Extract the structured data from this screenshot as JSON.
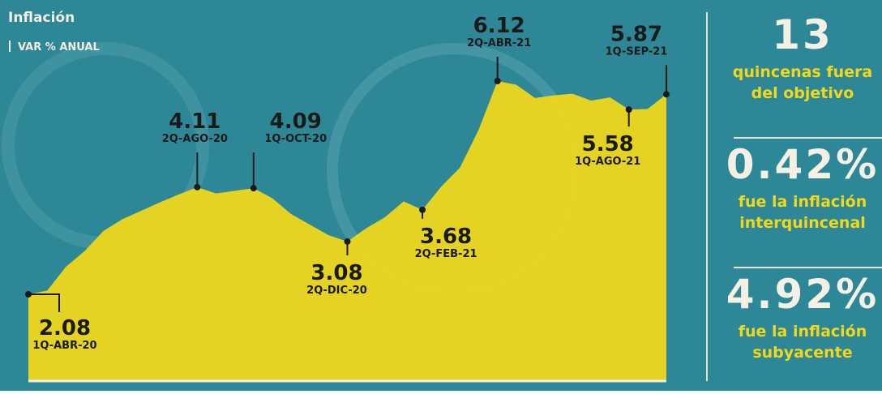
{
  "chart_data": {
    "type": "area",
    "title": "Inflación",
    "subtitle": "VAR % ANUAL",
    "color": "#f2d81a",
    "categories": [
      "1Q-ABR-20",
      null,
      null,
      null,
      null,
      null,
      null,
      null,
      null,
      "2Q-AGO-20",
      null,
      null,
      "1Q-OCT-20",
      null,
      null,
      null,
      null,
      "2Q-DIC-20",
      null,
      null,
      null,
      "2Q-FEB-21",
      null,
      null,
      null,
      "2Q-ABR-21",
      null,
      null,
      null,
      null,
      null,
      null,
      "1Q-AGO-21",
      null,
      "1Q-SEP-21"
    ],
    "values": [
      2.08,
      2.15,
      2.6,
      2.9,
      3.28,
      3.5,
      3.66,
      3.82,
      3.97,
      4.11,
      3.99,
      4.04,
      4.09,
      3.9,
      3.6,
      3.4,
      3.2,
      3.08,
      3.33,
      3.54,
      3.84,
      3.68,
      4.12,
      4.48,
      5.2,
      6.12,
      6.05,
      5.8,
      5.85,
      5.88,
      5.75,
      5.81,
      5.58,
      5.59,
      5.87
    ]
  },
  "side_panel": [
    {
      "value": "13",
      "lines": [
        "quincenas fuera",
        "del objetivo"
      ]
    },
    {
      "value": "0.42%",
      "lines": [
        "fue la inflación",
        "interquincenal"
      ]
    },
    {
      "value": "4.92%",
      "lines": [
        "fue la inflación",
        "subyacente"
      ]
    }
  ]
}
